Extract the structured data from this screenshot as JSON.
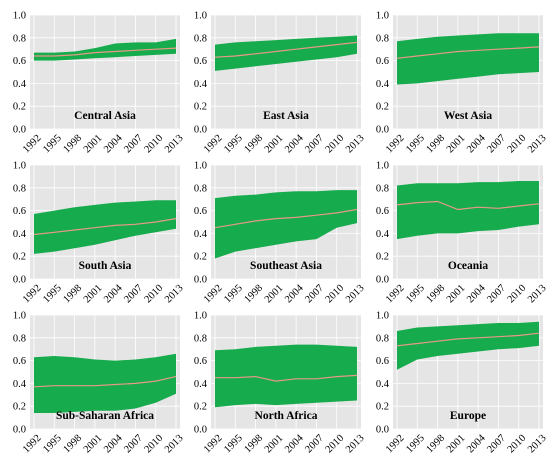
{
  "figure": {
    "colors": {
      "panel_background": "#e5e5e5",
      "grid": "#ffffff",
      "band": "#16ab4c",
      "median_line": "#e69a86"
    }
  },
  "chart_data": [
    {
      "type": "area",
      "title": "Central Asia",
      "x": [
        1992,
        1995,
        1998,
        2001,
        2004,
        2007,
        2010,
        2013
      ],
      "ylim": [
        0,
        1.0
      ],
      "yticks": [
        "0.0",
        "0.2",
        "0.4",
        "0.6",
        "0.8",
        "1.0"
      ],
      "series": [
        {
          "role": "upper",
          "values": [
            0.67,
            0.67,
            0.68,
            0.71,
            0.75,
            0.76,
            0.76,
            0.79
          ]
        },
        {
          "role": "median",
          "values": [
            0.64,
            0.64,
            0.65,
            0.67,
            0.68,
            0.69,
            0.7,
            0.71
          ]
        },
        {
          "role": "lower",
          "values": [
            0.6,
            0.6,
            0.61,
            0.62,
            0.63,
            0.64,
            0.65,
            0.66
          ]
        }
      ]
    },
    {
      "type": "area",
      "title": "East Asia",
      "x": [
        1992,
        1995,
        1998,
        2001,
        2004,
        2007,
        2010,
        2013
      ],
      "ylim": [
        0,
        1.0
      ],
      "yticks": [
        "0.0",
        "0.2",
        "0.4",
        "0.6",
        "0.8",
        "1.0"
      ],
      "series": [
        {
          "role": "upper",
          "values": [
            0.74,
            0.76,
            0.77,
            0.78,
            0.79,
            0.8,
            0.81,
            0.82
          ]
        },
        {
          "role": "median",
          "values": [
            0.63,
            0.64,
            0.66,
            0.68,
            0.7,
            0.72,
            0.74,
            0.76
          ]
        },
        {
          "role": "lower",
          "values": [
            0.51,
            0.53,
            0.55,
            0.57,
            0.59,
            0.61,
            0.63,
            0.66
          ]
        }
      ]
    },
    {
      "type": "area",
      "title": "West Asia",
      "x": [
        1992,
        1995,
        1998,
        2001,
        2004,
        2007,
        2010,
        2013
      ],
      "ylim": [
        0,
        1.0
      ],
      "yticks": [
        "0.0",
        "0.2",
        "0.4",
        "0.6",
        "0.8",
        "1.0"
      ],
      "series": [
        {
          "role": "upper",
          "values": [
            0.77,
            0.79,
            0.81,
            0.82,
            0.83,
            0.84,
            0.84,
            0.84
          ]
        },
        {
          "role": "median",
          "values": [
            0.62,
            0.64,
            0.66,
            0.68,
            0.69,
            0.7,
            0.71,
            0.72
          ]
        },
        {
          "role": "lower",
          "values": [
            0.39,
            0.4,
            0.42,
            0.44,
            0.46,
            0.48,
            0.49,
            0.5
          ]
        }
      ]
    },
    {
      "type": "area",
      "title": "South Asia",
      "x": [
        1992,
        1995,
        1998,
        2001,
        2004,
        2007,
        2010,
        2013
      ],
      "ylim": [
        0,
        1.0
      ],
      "yticks": [
        "0.0",
        "0.2",
        "0.4",
        "0.6",
        "0.8",
        "1.0"
      ],
      "series": [
        {
          "role": "upper",
          "values": [
            0.57,
            0.6,
            0.63,
            0.65,
            0.67,
            0.68,
            0.69,
            0.69
          ]
        },
        {
          "role": "median",
          "values": [
            0.39,
            0.41,
            0.43,
            0.45,
            0.47,
            0.48,
            0.5,
            0.53
          ]
        },
        {
          "role": "lower",
          "values": [
            0.22,
            0.24,
            0.27,
            0.3,
            0.34,
            0.38,
            0.41,
            0.44
          ]
        }
      ]
    },
    {
      "type": "area",
      "title": "Southeast Asia",
      "x": [
        1992,
        1995,
        1998,
        2001,
        2004,
        2007,
        2010,
        2013
      ],
      "ylim": [
        0,
        1.0
      ],
      "yticks": [
        "0.0",
        "0.2",
        "0.4",
        "0.6",
        "0.8",
        "1.0"
      ],
      "series": [
        {
          "role": "upper",
          "values": [
            0.71,
            0.73,
            0.74,
            0.76,
            0.77,
            0.77,
            0.78,
            0.78
          ]
        },
        {
          "role": "median",
          "values": [
            0.45,
            0.48,
            0.51,
            0.53,
            0.54,
            0.56,
            0.58,
            0.61
          ]
        },
        {
          "role": "lower",
          "values": [
            0.18,
            0.24,
            0.27,
            0.3,
            0.33,
            0.35,
            0.45,
            0.49
          ]
        }
      ]
    },
    {
      "type": "area",
      "title": "Oceania",
      "x": [
        1992,
        1995,
        1998,
        2001,
        2004,
        2007,
        2010,
        2013
      ],
      "ylim": [
        0,
        1.0
      ],
      "yticks": [
        "0.0",
        "0.2",
        "0.4",
        "0.6",
        "0.8",
        "1.0"
      ],
      "series": [
        {
          "role": "upper",
          "values": [
            0.82,
            0.84,
            0.84,
            0.84,
            0.85,
            0.85,
            0.86,
            0.86
          ]
        },
        {
          "role": "median",
          "values": [
            0.65,
            0.67,
            0.68,
            0.61,
            0.63,
            0.62,
            0.64,
            0.66
          ]
        },
        {
          "role": "lower",
          "values": [
            0.35,
            0.38,
            0.4,
            0.4,
            0.42,
            0.43,
            0.46,
            0.48
          ]
        }
      ]
    },
    {
      "type": "area",
      "title": "Sub-Saharan Africa",
      "x": [
        1992,
        1995,
        1998,
        2001,
        2004,
        2007,
        2010,
        2013
      ],
      "ylim": [
        0,
        1.0
      ],
      "yticks": [
        "0.0",
        "0.2",
        "0.4",
        "0.6",
        "0.8",
        "1.0"
      ],
      "series": [
        {
          "role": "upper",
          "values": [
            0.63,
            0.64,
            0.63,
            0.61,
            0.6,
            0.61,
            0.63,
            0.66
          ]
        },
        {
          "role": "median",
          "values": [
            0.37,
            0.38,
            0.38,
            0.38,
            0.39,
            0.4,
            0.42,
            0.46
          ]
        },
        {
          "role": "lower",
          "values": [
            0.14,
            0.14,
            0.15,
            0.16,
            0.16,
            0.18,
            0.23,
            0.31
          ]
        }
      ]
    },
    {
      "type": "area",
      "title": "North Africa",
      "x": [
        1992,
        1995,
        1998,
        2001,
        2004,
        2007,
        2010,
        2013
      ],
      "ylim": [
        0,
        1.0
      ],
      "yticks": [
        "0.0",
        "0.2",
        "0.4",
        "0.6",
        "0.8",
        "1.0"
      ],
      "series": [
        {
          "role": "upper",
          "values": [
            0.69,
            0.7,
            0.72,
            0.73,
            0.74,
            0.74,
            0.73,
            0.72
          ]
        },
        {
          "role": "median",
          "values": [
            0.45,
            0.45,
            0.46,
            0.42,
            0.44,
            0.44,
            0.46,
            0.47
          ]
        },
        {
          "role": "lower",
          "values": [
            0.19,
            0.21,
            0.22,
            0.21,
            0.22,
            0.23,
            0.24,
            0.25
          ]
        }
      ]
    },
    {
      "type": "area",
      "title": "Europe",
      "x": [
        1992,
        1995,
        1998,
        2001,
        2004,
        2007,
        2010,
        2013
      ],
      "ylim": [
        0,
        1.0
      ],
      "yticks": [
        "0.0",
        "0.2",
        "0.4",
        "0.6",
        "0.8",
        "1.0"
      ],
      "series": [
        {
          "role": "upper",
          "values": [
            0.86,
            0.89,
            0.9,
            0.91,
            0.92,
            0.93,
            0.93,
            0.94
          ]
        },
        {
          "role": "median",
          "values": [
            0.73,
            0.75,
            0.77,
            0.79,
            0.8,
            0.81,
            0.82,
            0.84
          ]
        },
        {
          "role": "lower",
          "values": [
            0.52,
            0.61,
            0.64,
            0.66,
            0.68,
            0.7,
            0.71,
            0.73
          ]
        }
      ]
    }
  ]
}
